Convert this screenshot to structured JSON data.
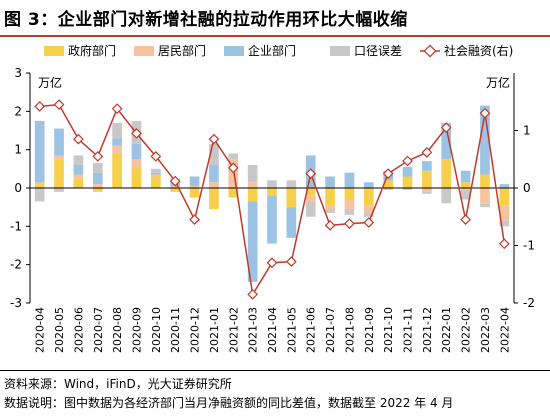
{
  "figure": {
    "title": "图 3：企业部门对新增社融的拉动作用环比大幅收缩",
    "source": "资料来源：Wind，iFinD，光大证券研究所",
    "note": "数据说明：图中数据为各经济部门当月净融资额的同比差值，数据截至 2022 年 4 月"
  },
  "chart_data": {
    "type": "bar",
    "categories": [
      "2020-04",
      "2020-05",
      "2020-06",
      "2020-07",
      "2020-08",
      "2020-09",
      "2020-10",
      "2020-11",
      "2020-12",
      "2021-01",
      "2021-02",
      "2021-03",
      "2021-04",
      "2021-05",
      "2021-06",
      "2021-07",
      "2021-08",
      "2021-09",
      "2021-10",
      "2021-11",
      "2021-12",
      "2022-01",
      "2022-02",
      "2022-03",
      "2022-04"
    ],
    "left_unit": "万亿",
    "right_unit": "万亿",
    "ylim_left": [
      -3,
      3
    ],
    "ylim_right": [
      -2,
      2
    ],
    "left_ticks": [
      3,
      2,
      1,
      0,
      -1,
      -2,
      -3
    ],
    "right_ticks": [
      1,
      0,
      -1,
      -2
    ],
    "series": [
      {
        "name": "政府部门",
        "type": "stacked-bar",
        "axis": "left",
        "color": "#f7d04b",
        "values": [
          0.1,
          0.75,
          0.25,
          -0.1,
          0.9,
          0.55,
          0.3,
          -0.1,
          -0.25,
          -0.55,
          -0.25,
          -0.35,
          -0.2,
          -0.5,
          -0.2,
          -0.45,
          -0.3,
          -0.45,
          0.2,
          0.3,
          0.45,
          0.75,
          0.15,
          0.35,
          -0.45
        ]
      },
      {
        "name": "居民部门",
        "type": "stacked-bar",
        "axis": "left",
        "color": "#f6c3a0",
        "values": [
          0.05,
          0.1,
          0.1,
          0.1,
          0.2,
          0.2,
          0.05,
          0.05,
          0.05,
          0.15,
          0.75,
          0.15,
          0.0,
          0.0,
          -0.15,
          -0.1,
          -0.25,
          -0.2,
          -0.05,
          0.0,
          -0.1,
          0.0,
          -0.05,
          -0.4,
          -0.4
        ]
      },
      {
        "name": "企业部门",
        "type": "stacked-bar",
        "axis": "left",
        "color": "#9cc3e4",
        "values": [
          1.6,
          0.7,
          0.25,
          0.3,
          0.2,
          0.4,
          0.05,
          0.15,
          0.25,
          0.45,
          0.0,
          -2.1,
          -1.25,
          -0.8,
          0.85,
          0.3,
          0.4,
          0.15,
          0.25,
          0.25,
          0.25,
          0.95,
          0.3,
          1.8,
          0.1
        ]
      },
      {
        "name": "口径误差",
        "type": "stacked-bar",
        "axis": "left",
        "color": "#c8c8c8",
        "values": [
          -0.35,
          -0.1,
          0.25,
          0.25,
          0.4,
          0.6,
          0.1,
          0.05,
          0.0,
          0.55,
          0.15,
          0.45,
          0.2,
          0.2,
          -0.4,
          -0.1,
          -0.15,
          -0.1,
          0.0,
          -0.05,
          -0.05,
          -0.4,
          -0.25,
          -0.1,
          -0.15
        ]
      },
      {
        "name": "社会融资(右)",
        "type": "line",
        "axis": "right",
        "color": "#c0392b",
        "values": [
          1.42,
          1.45,
          0.85,
          0.55,
          1.38,
          0.95,
          0.55,
          0.12,
          -0.55,
          0.85,
          0.35,
          -1.85,
          -1.3,
          -1.28,
          0.25,
          -0.65,
          -0.62,
          -0.6,
          0.25,
          0.47,
          0.62,
          1.05,
          -0.55,
          1.3,
          -0.97
        ]
      }
    ],
    "legend_position": "top"
  }
}
